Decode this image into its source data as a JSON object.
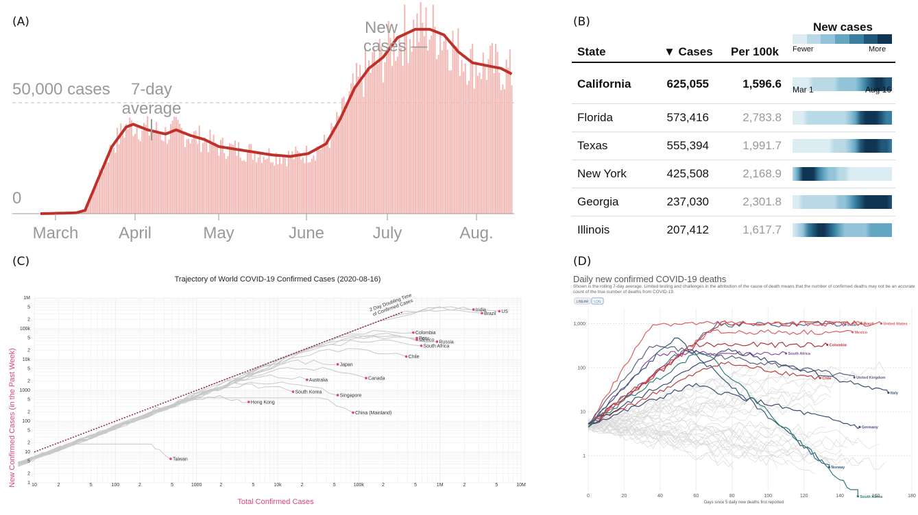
{
  "panel_labels": {
    "a": "(A)",
    "b": "(B)",
    "c": "(C)",
    "d": "(D)"
  },
  "chart_data": [
    {
      "id": "A",
      "type": "bar",
      "title": "",
      "annotations": {
        "new_cases": [
          "New",
          "cases —"
        ],
        "avg": [
          "7-day",
          "average"
        ],
        "ref": "50,000 cases",
        "zero": "0"
      },
      "x_ticks": [
        "March",
        "April",
        "May",
        "June",
        "July",
        "Aug."
      ],
      "ylim": [
        0,
        75000
      ],
      "reference_line": 50000,
      "series_avg_keypoints": [
        [
          0,
          0
        ],
        [
          20,
          300
        ],
        [
          25,
          1200
        ],
        [
          32,
          12000
        ],
        [
          40,
          24000
        ],
        [
          48,
          31000
        ],
        [
          52,
          32000
        ],
        [
          60,
          30000
        ],
        [
          70,
          28500
        ],
        [
          76,
          30000
        ],
        [
          84,
          28000
        ],
        [
          92,
          26500
        ],
        [
          100,
          24000
        ],
        [
          110,
          23000
        ],
        [
          120,
          22000
        ],
        [
          130,
          21000
        ],
        [
          140,
          20500
        ],
        [
          150,
          21500
        ],
        [
          160,
          25000
        ],
        [
          168,
          34000
        ],
        [
          176,
          45000
        ],
        [
          184,
          52000
        ],
        [
          192,
          56000
        ],
        [
          200,
          63000
        ],
        [
          210,
          66000
        ],
        [
          218,
          66000
        ],
        [
          226,
          64000
        ],
        [
          234,
          58000
        ],
        [
          242,
          54000
        ],
        [
          250,
          53000
        ],
        [
          258,
          52000
        ],
        [
          264,
          50000
        ]
      ]
    },
    {
      "id": "C",
      "type": "line",
      "title": "Trajectory of World COVID-19 Confirmed Cases (2020-08-16)",
      "xlabel": "Total Confirmed Cases",
      "ylabel": "New Confirmed Cases (in the Past Week)",
      "x_ticks": [
        "10",
        "2",
        "5",
        "100",
        "2",
        "5",
        "1000",
        "2",
        "5",
        "10k",
        "2",
        "5",
        "100k",
        "2",
        "5",
        "1M",
        "2",
        "5",
        "10M"
      ],
      "y_ticks": [
        "1M",
        "5",
        "2",
        "100k",
        "5",
        "2",
        "10k",
        "5",
        "2",
        "1000",
        "5",
        "2",
        "100",
        "5",
        "2",
        "10",
        "5",
        "2",
        "1"
      ],
      "doubling_label": [
        "2 Day Doubling Time",
        "of Confirmed Cases"
      ],
      "countries": [
        {
          "name": "India",
          "x": 2600000,
          "y": 420000
        },
        {
          "name": "Brazil",
          "x": 3300000,
          "y": 320000
        },
        {
          "name": "US",
          "x": 5400000,
          "y": 370000
        },
        {
          "name": "Colombia",
          "x": 470000,
          "y": 75000
        },
        {
          "name": "Peru",
          "x": 520000,
          "y": 50000
        },
        {
          "name": "Mexico",
          "x": 520000,
          "y": 44000
        },
        {
          "name": "Russia",
          "x": 920000,
          "y": 38000
        },
        {
          "name": "South Africa",
          "x": 590000,
          "y": 28000
        },
        {
          "name": "Chile",
          "x": 385000,
          "y": 12500
        },
        {
          "name": "Japan",
          "x": 55000,
          "y": 7000
        },
        {
          "name": "Canada",
          "x": 123000,
          "y": 2500
        },
        {
          "name": "Australia",
          "x": 23000,
          "y": 2200
        },
        {
          "name": "South Korea",
          "x": 15500,
          "y": 900
        },
        {
          "name": "Singapore",
          "x": 55000,
          "y": 700
        },
        {
          "name": "Hong Kong",
          "x": 4400,
          "y": 420
        },
        {
          "name": "China (Mainland)",
          "x": 85000,
          "y": 190
        },
        {
          "name": "Taiwan",
          "x": 480,
          "y": 6
        }
      ]
    },
    {
      "id": "D",
      "type": "line",
      "title": "Daily new confirmed COVID-19 deaths",
      "subtitle": "Shown is the rolling 7-day average. Limited testing and challenges in the attribution of the cause of death means that the number of confirmed deaths may not be an accurate count of the true number of deaths from COVID-19.",
      "buttons": [
        "LINEAR",
        "LOG"
      ],
      "xlabel": "Days since 5 daily new deaths first reported",
      "x_ticks": [
        "0",
        "20",
        "40",
        "60",
        "80",
        "100",
        "120",
        "140",
        "160",
        "180"
      ],
      "y_ticks": [
        "1,000",
        "100",
        "10",
        "1"
      ],
      "countries": [
        {
          "name": "India",
          "day": 143,
          "val": 950,
          "color": "#4b6a9b"
        },
        {
          "name": "Brazil",
          "day": 152,
          "val": 1000,
          "color": "#c03a3a"
        },
        {
          "name": "United States",
          "day": 163,
          "val": 1000,
          "color": "#e0595b"
        },
        {
          "name": "Mexico",
          "day": 147,
          "val": 640,
          "color": "#e0595b"
        },
        {
          "name": "Colombia",
          "day": 133,
          "val": 330,
          "color": "#b1333f"
        },
        {
          "name": "South Africa",
          "day": 110,
          "val": 210,
          "color": "#8a4c9b"
        },
        {
          "name": "Chile",
          "day": 129,
          "val": 58,
          "color": "#c03a3a"
        },
        {
          "name": "United Kingdom",
          "day": 148,
          "val": 60,
          "color": "#5a5f7a"
        },
        {
          "name": "Italy",
          "day": 167,
          "val": 27,
          "color": "#3a4a72"
        },
        {
          "name": "Germany",
          "day": 151,
          "val": 4.5,
          "color": "#3a4a72"
        },
        {
          "name": "Norway",
          "day": 134,
          "val": 0.55,
          "color": "#2f5b7a"
        },
        {
          "name": "South Korea",
          "day": 150,
          "val": 0.12,
          "color": "#2f7a73"
        }
      ]
    }
  ],
  "table": {
    "headers": {
      "state": "State",
      "cases": "▼ Cases",
      "per100k": "Per 100k",
      "legend_title": "New cases"
    },
    "legend": {
      "fewer": "Fewer",
      "more": "More",
      "start": "Mar 1",
      "end": "Aug 16",
      "swatches": [
        "#dcecf3",
        "#b9d9e7",
        "#92c3d8",
        "#63a6c1",
        "#3a7fa0",
        "#21587a",
        "#0f3552"
      ]
    },
    "rows": [
      {
        "state": "California",
        "cases": "625,055",
        "per100k": "1,596.6",
        "profile": [
          0.05,
          0.05,
          0.05,
          0.1,
          0.15,
          0.2,
          0.2,
          0.25,
          0.25,
          0.3,
          0.3,
          0.35,
          0.4,
          0.5,
          0.6,
          0.75,
          0.9,
          0.95,
          0.85,
          0.8
        ]
      },
      {
        "state": "Florida",
        "cases": "573,416",
        "per100k": "2,783.8",
        "profile": [
          0.02,
          0.05,
          0.1,
          0.15,
          0.15,
          0.15,
          0.15,
          0.15,
          0.15,
          0.15,
          0.2,
          0.3,
          0.5,
          0.75,
          0.9,
          1,
          0.95,
          0.85,
          0.7,
          0.6
        ]
      },
      {
        "state": "Texas",
        "cases": "555,394",
        "per100k": "1,991.7",
        "profile": [
          0.02,
          0.05,
          0.08,
          0.1,
          0.12,
          0.12,
          0.12,
          0.12,
          0.15,
          0.15,
          0.2,
          0.35,
          0.55,
          0.75,
          0.9,
          0.95,
          0.9,
          0.85,
          0.75,
          0.7
        ]
      },
      {
        "state": "New York",
        "cases": "425,508",
        "per100k": "2,168.9",
        "profile": [
          0.15,
          0.5,
          0.95,
          1,
          0.9,
          0.7,
          0.55,
          0.4,
          0.3,
          0.2,
          0.15,
          0.1,
          0.08,
          0.06,
          0.06,
          0.05,
          0.05,
          0.05,
          0.05,
          0.05
        ]
      },
      {
        "state": "Georgia",
        "cases": "237,030",
        "per100k": "2,301.8",
        "profile": [
          0.05,
          0.1,
          0.2,
          0.25,
          0.25,
          0.25,
          0.25,
          0.25,
          0.25,
          0.3,
          0.35,
          0.45,
          0.6,
          0.8,
          0.95,
          1,
          0.95,
          0.9,
          0.9,
          0.85
        ]
      },
      {
        "state": "Illinois",
        "cases": "207,412",
        "per100k": "1,617.7",
        "profile": [
          0.05,
          0.2,
          0.4,
          0.6,
          0.75,
          0.9,
          0.95,
          0.85,
          0.7,
          0.5,
          0.4,
          0.35,
          0.35,
          0.35,
          0.4,
          0.45,
          0.5,
          0.55,
          0.55,
          0.55
        ]
      }
    ]
  }
}
